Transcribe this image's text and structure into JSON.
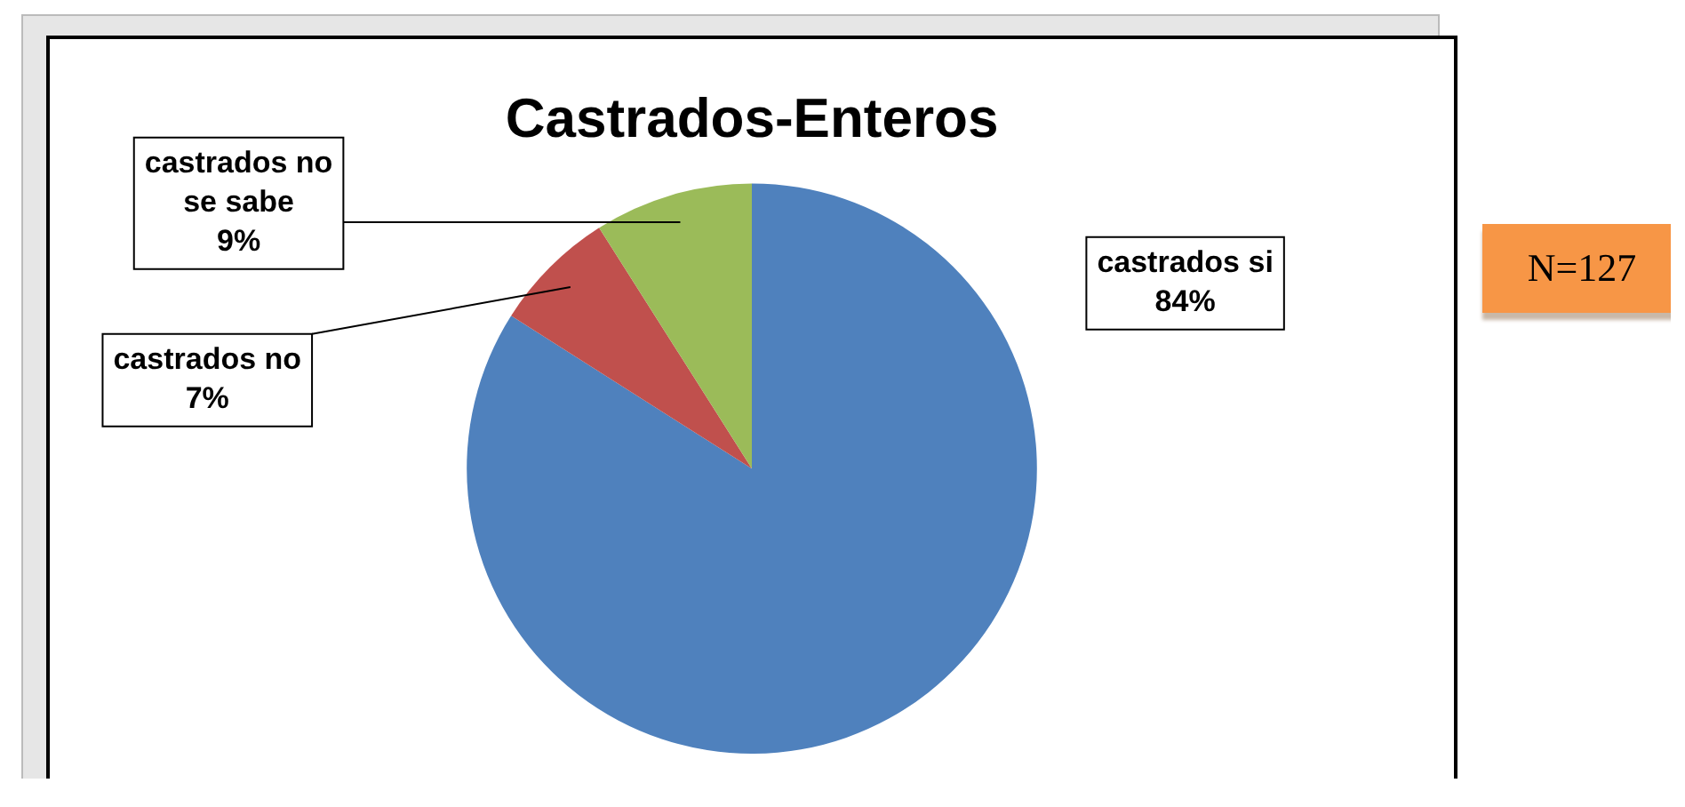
{
  "chart_data": {
    "type": "pie",
    "title": "Castrados-Enteros",
    "categories": [
      "castrados si",
      "castrados no",
      "castrados no se sabe"
    ],
    "values": [
      84,
      7,
      9
    ],
    "colors": [
      "#4f81bd",
      "#c0504d",
      "#9bbb59"
    ],
    "value_labels": [
      "84%",
      "7%",
      "9%"
    ],
    "legend": false,
    "annotations": [
      "N=127"
    ]
  }
}
